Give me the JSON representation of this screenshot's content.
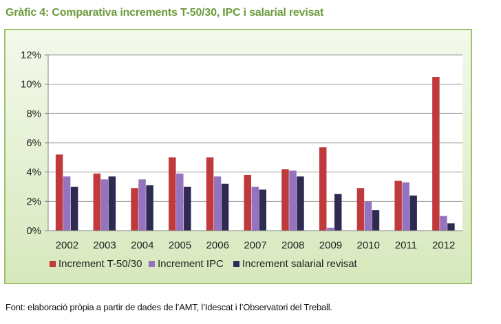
{
  "page": {
    "title": "Gràfic 4: Comparativa increments T-50/30, IPC i salarial revisat",
    "source": "Font: elaboració pròpia a partir de dades de l’AMT, l’Idescat i l’Observatori del Treball."
  },
  "colors": {
    "title": "#6a9a3c",
    "frame_border": "#9cc26a",
    "frame_bg_top": "#f4f9ec",
    "frame_bg_bottom": "#d6e8bc",
    "plot_bg": "#ffffff",
    "axis": "#808080",
    "grid": "#9a9a9a"
  },
  "chart_data": {
    "type": "bar",
    "title": "Comparativa increments T-50/30, IPC i salarial revisat",
    "xlabel": "",
    "ylabel": "",
    "ylim": [
      0,
      12
    ],
    "yticks": [
      0,
      2,
      4,
      6,
      8,
      10,
      12
    ],
    "ytick_labels": [
      "0%",
      "2%",
      "4%",
      "6%",
      "8%",
      "10%",
      "12%"
    ],
    "grid": true,
    "legend_position": "bottom",
    "categories": [
      "2002",
      "2003",
      "2004",
      "2005",
      "2006",
      "2007",
      "2008",
      "2009",
      "2010",
      "2011",
      "2012"
    ],
    "series": [
      {
        "name": "Increment T-50/30",
        "color": "#c0393b",
        "values": [
          5.2,
          3.9,
          2.9,
          5.0,
          5.0,
          3.8,
          4.2,
          5.7,
          2.9,
          3.4,
          10.5
        ]
      },
      {
        "name": "Increment IPC",
        "color": "#9673be",
        "values": [
          3.7,
          3.5,
          3.5,
          3.9,
          3.7,
          3.0,
          4.1,
          0.2,
          2.0,
          3.3,
          1.0
        ]
      },
      {
        "name": "Increment salarial revisat",
        "color": "#2e2a52",
        "values": [
          3.0,
          3.7,
          3.1,
          3.0,
          3.2,
          2.8,
          3.7,
          2.5,
          1.4,
          2.4,
          0.5
        ]
      }
    ]
  }
}
